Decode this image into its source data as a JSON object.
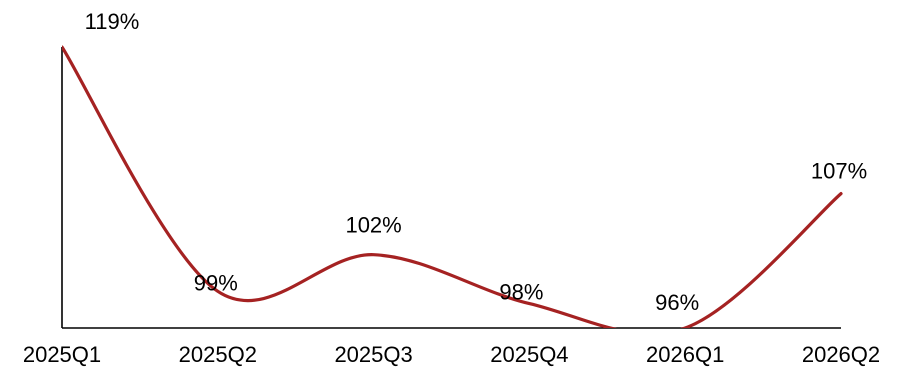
{
  "chart_data": {
    "type": "line",
    "categories": [
      "2025Q1",
      "2025Q2",
      "2025Q3",
      "2025Q4",
      "2026Q1",
      "2026Q2"
    ],
    "series": [
      {
        "values": [
          119,
          99,
          102,
          98,
          96,
          107
        ],
        "labels": [
          "119%",
          "99%",
          "102%",
          "98%",
          "96%",
          "107%"
        ]
      }
    ],
    "ylim": [
      96,
      119
    ],
    "grid": false,
    "legend": "none",
    "smooth": true,
    "colors": {
      "line": "#a52222",
      "axis": "#000000",
      "text": "#000000"
    }
  }
}
